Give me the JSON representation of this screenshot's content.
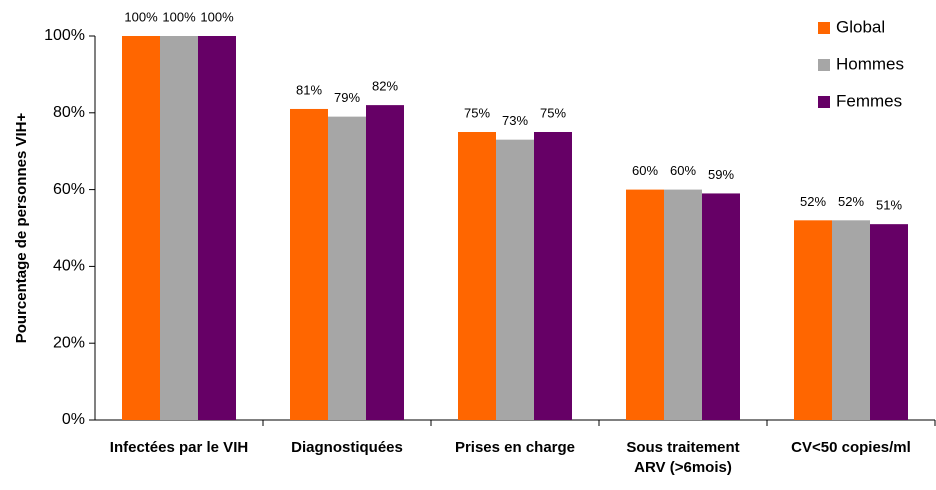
{
  "chart_data": {
    "type": "bar",
    "y_label": "Pourcentage de personnes VIH+",
    "categories": [
      "Infectées par le VIH",
      "Diagnostiquées",
      "Prises en charge",
      "Sous traitement\nARV (>6mois)",
      "CV<50 copies/ml"
    ],
    "series": [
      {
        "name": "Global",
        "color": "#ff6600",
        "values": [
          100,
          81,
          75,
          60,
          52
        ],
        "value_labels": [
          "100%",
          "81%",
          "75%",
          "60%",
          "52%"
        ]
      },
      {
        "name": "Hommes",
        "color": "#a6a6a6",
        "values": [
          100,
          79,
          73,
          60,
          52
        ],
        "value_labels": [
          "100%",
          "79%",
          "73%",
          "60%",
          "52%"
        ]
      },
      {
        "name": "Femmes",
        "color": "#660066",
        "values": [
          100,
          82,
          75,
          59,
          51
        ],
        "value_labels": [
          "100%",
          "82%",
          "75%",
          "59%",
          "51%"
        ]
      }
    ],
    "ylim": [
      0,
      100
    ],
    "yticks": [
      {
        "value": 0,
        "label": "0%"
      },
      {
        "value": 20,
        "label": "20%"
      },
      {
        "value": 40,
        "label": "40%"
      },
      {
        "value": 60,
        "label": "60%"
      },
      {
        "value": 80,
        "label": "80%"
      },
      {
        "value": 100,
        "label": "100%"
      }
    ],
    "legend": "top-right"
  }
}
